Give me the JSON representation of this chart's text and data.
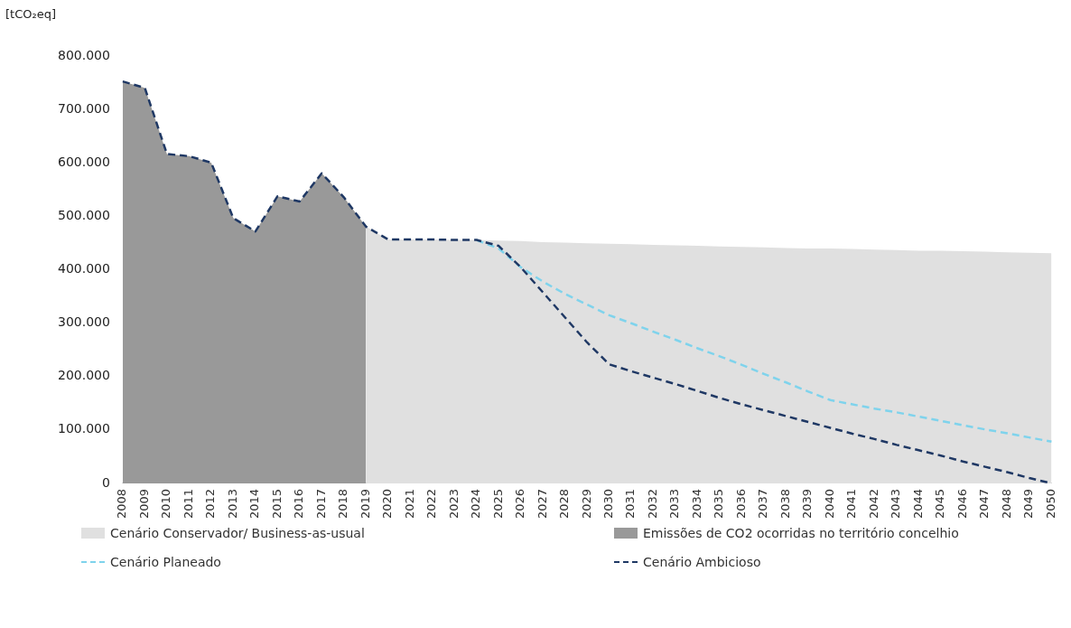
{
  "chart_data": {
    "type": "area",
    "ylabel": "[tCO₂eq]",
    "categories": [
      "2008",
      "2009",
      "2010",
      "2011",
      "2012",
      "2013",
      "2014",
      "2015",
      "2016",
      "2017",
      "2018",
      "2019",
      "2020",
      "2021",
      "2022",
      "2023",
      "2024",
      "2025",
      "2026",
      "2027",
      "2028",
      "2029",
      "2030",
      "2031",
      "2032",
      "2033",
      "2034",
      "2035",
      "2036",
      "2037",
      "2038",
      "2039",
      "2040",
      "2041",
      "2042",
      "2043",
      "2044",
      "2045",
      "2046",
      "2047",
      "2048",
      "2049",
      "2050"
    ],
    "series": [
      {
        "name": "Cenário Conservador/ Business-as-usual",
        "color": "#e0e0e0",
        "values": [
          null,
          null,
          null,
          null,
          null,
          null,
          null,
          null,
          null,
          null,
          null,
          481000,
          457000,
          457000,
          457000,
          456000,
          456000,
          455000,
          454000,
          452000,
          451000,
          450000,
          449000,
          448000,
          447000,
          446000,
          445000,
          444000,
          443000,
          442000,
          441000,
          440000,
          440000,
          439000,
          438000,
          437000,
          436000,
          436000,
          435000,
          434000,
          433000,
          432000,
          431000
        ]
      },
      {
        "name": "Emissões de CO2 ocorridas no território concelhio",
        "color": "#999999",
        "values": [
          753000,
          741000,
          617000,
          613000,
          601000,
          497000,
          472000,
          538000,
          528000,
          581000,
          536000,
          481000,
          null,
          null,
          null,
          null,
          null,
          null,
          null,
          null,
          null,
          null,
          null,
          null,
          null,
          null,
          null,
          null,
          null,
          null,
          null,
          null,
          null,
          null,
          null,
          null,
          null,
          null,
          null,
          null,
          null,
          null,
          null
        ]
      },
      {
        "name": "Cenário Planeado",
        "type": "line",
        "line_style": "dashed",
        "color": "#7fd3ec",
        "values": [
          null,
          null,
          null,
          null,
          null,
          null,
          null,
          null,
          null,
          null,
          null,
          null,
          null,
          null,
          null,
          null,
          456000,
          440000,
          405000,
          378000,
          355000,
          335000,
          315000,
          300000,
          284000,
          269000,
          253000,
          238000,
          222000,
          205000,
          189000,
          172000,
          156000,
          148000,
          140000,
          133000,
          125000,
          117000,
          109000,
          101000,
          94000,
          86000,
          78000
        ]
      },
      {
        "name": "Cenário Ambicioso",
        "type": "line",
        "line_style": "dashed",
        "color": "#1f3864",
        "values": [
          753000,
          741000,
          617000,
          613000,
          601000,
          497000,
          472000,
          538000,
          528000,
          581000,
          536000,
          481000,
          457000,
          457000,
          457000,
          456000,
          456000,
          445000,
          405000,
          358000,
          311000,
          264000,
          223000,
          210000,
          198000,
          186000,
          173000,
          160000,
          148000,
          137000,
          126000,
          115000,
          104000,
          93000,
          83000,
          72000,
          62000,
          52000,
          41000,
          31000,
          21000,
          10000,
          0
        ]
      }
    ],
    "ylim": [
      0,
      800000
    ],
    "yticks": [
      {
        "value": 0,
        "label": "0"
      },
      {
        "value": 100000,
        "label": "100.000"
      },
      {
        "value": 200000,
        "label": "200.000"
      },
      {
        "value": 300000,
        "label": "300.000"
      },
      {
        "value": 400000,
        "label": "400.000"
      },
      {
        "value": 500000,
        "label": "500.000"
      },
      {
        "value": 600000,
        "label": "600.000"
      },
      {
        "value": 700000,
        "label": "700.000"
      },
      {
        "value": 800000,
        "label": "800.000"
      }
    ],
    "grid": false,
    "legend": "bottom",
    "marker": "none"
  }
}
